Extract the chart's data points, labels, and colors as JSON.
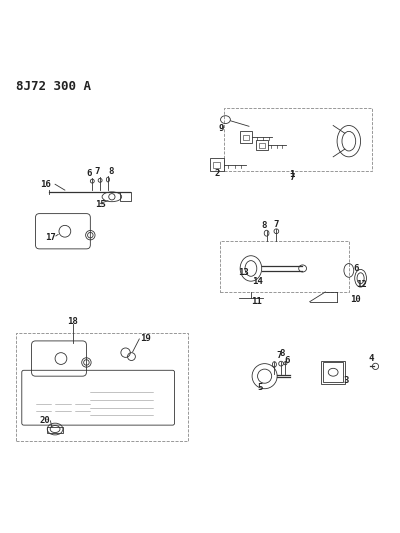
{
  "title": "8J72 300 A",
  "bg_color": "#ffffff",
  "line_color": "#333333",
  "label_color": "#222222",
  "title_fontsize": 9,
  "label_fontsize": 6.5,
  "fig_width": 4.0,
  "fig_height": 5.33
}
